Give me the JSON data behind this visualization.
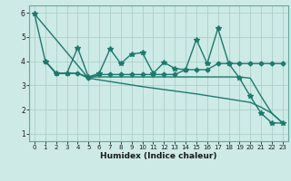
{
  "xlabel": "Humidex (Indice chaleur)",
  "bg_color": "#ceeae6",
  "line_color": "#1a7a6e",
  "grid_color": "#aacfca",
  "xlim": [
    -0.5,
    23.5
  ],
  "ylim": [
    0.7,
    6.3
  ],
  "xticks": [
    0,
    1,
    2,
    3,
    4,
    5,
    6,
    7,
    8,
    9,
    10,
    11,
    12,
    13,
    14,
    15,
    16,
    17,
    18,
    19,
    20,
    21,
    22,
    23
  ],
  "yticks": [
    1,
    2,
    3,
    4,
    5,
    6
  ],
  "series": [
    {
      "x": [
        0,
        1,
        2,
        3,
        4,
        5,
        6,
        7,
        8,
        9,
        10,
        11,
        12,
        13,
        14,
        15,
        16,
        17,
        18,
        19,
        20,
        21,
        22,
        23
      ],
      "y": [
        5.95,
        4.0,
        3.5,
        3.5,
        4.55,
        3.35,
        3.5,
        4.5,
        3.9,
        4.3,
        4.35,
        3.5,
        3.95,
        3.7,
        3.65,
        4.9,
        3.9,
        5.35,
        3.9,
        3.3,
        2.55,
        1.85,
        1.45,
        1.45
      ],
      "marker": "*",
      "markersize": 4,
      "linewidth": 1.0
    },
    {
      "x": [
        1,
        2,
        3,
        4,
        5,
        6,
        7,
        8,
        9,
        10,
        11,
        12,
        13,
        14,
        15,
        16,
        17,
        18,
        19,
        20,
        21,
        22,
        23
      ],
      "y": [
        4.0,
        3.5,
        3.5,
        3.5,
        3.3,
        3.45,
        3.45,
        3.45,
        3.45,
        3.45,
        3.45,
        3.45,
        3.45,
        3.65,
        3.65,
        3.65,
        3.9,
        3.9,
        3.9,
        3.9,
        3.9,
        3.9,
        3.9
      ],
      "marker": "D",
      "markersize": 2.5,
      "linewidth": 1.0
    },
    {
      "x": [
        0,
        5,
        10,
        15,
        20,
        21,
        22,
        23
      ],
      "y": [
        5.95,
        3.3,
        2.95,
        2.65,
        2.3,
        2.1,
        1.85,
        1.45
      ],
      "marker": null,
      "markersize": 0,
      "linewidth": 1.0
    },
    {
      "x": [
        1,
        2,
        3,
        4,
        5,
        6,
        7,
        8,
        9,
        10,
        11,
        12,
        13,
        14,
        15,
        16,
        17,
        18,
        19,
        20,
        21,
        22,
        23
      ],
      "y": [
        4.0,
        3.5,
        3.5,
        3.5,
        3.35,
        3.35,
        3.35,
        3.35,
        3.35,
        3.35,
        3.35,
        3.35,
        3.35,
        3.35,
        3.35,
        3.35,
        3.35,
        3.35,
        3.35,
        3.3,
        2.55,
        1.85,
        1.45
      ],
      "marker": null,
      "markersize": 0,
      "linewidth": 1.0
    }
  ]
}
